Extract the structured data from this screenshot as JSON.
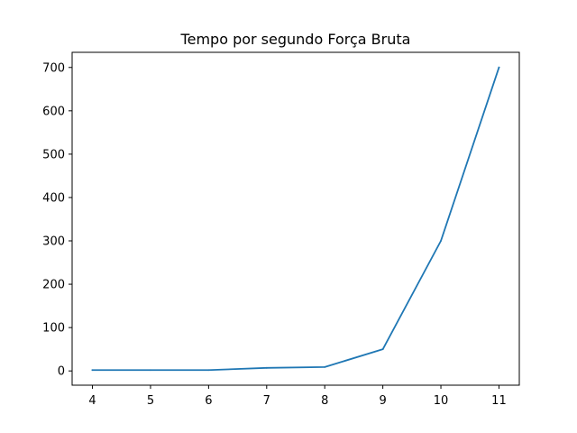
{
  "chart_data": {
    "type": "line",
    "title": "Tempo por segundo Força Bruta",
    "xlabel": "",
    "ylabel": "",
    "x": [
      4,
      5,
      6,
      7,
      8,
      9,
      10,
      11
    ],
    "series": [
      {
        "values": [
          2,
          2,
          2,
          7,
          9,
          50,
          300,
          700
        ],
        "color": "#1f77b4"
      }
    ],
    "xlim": [
      3.65,
      11.35
    ],
    "ylim": [
      -32.9,
      734.9
    ],
    "xticks": [
      4,
      5,
      6,
      7,
      8,
      9,
      10,
      11
    ],
    "yticks": [
      0,
      100,
      200,
      300,
      400,
      500,
      600,
      700
    ],
    "grid": false,
    "legend": "none"
  }
}
